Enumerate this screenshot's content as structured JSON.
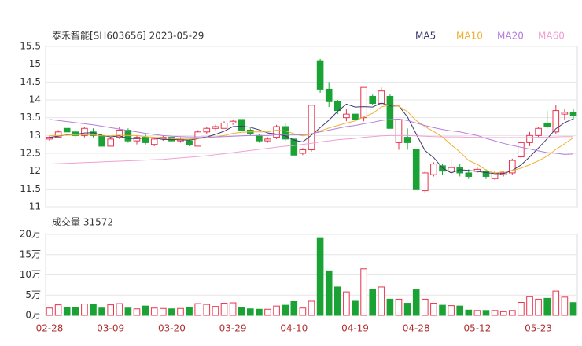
{
  "chart_data": [
    {
      "type": "candlestick",
      "title": "泰禾智能[SH603656] 2023-05-29",
      "categories": [
        "02-28",
        null,
        null,
        null,
        null,
        null,
        null,
        "03-09",
        null,
        null,
        null,
        null,
        null,
        null,
        "03-20",
        null,
        null,
        null,
        null,
        null,
        null,
        "03-29",
        null,
        null,
        null,
        null,
        null,
        null,
        "04-10",
        null,
        null,
        null,
        null,
        null,
        null,
        "04-19",
        null,
        null,
        null,
        null,
        null,
        null,
        "04-28",
        null,
        null,
        null,
        null,
        null,
        null,
        "05-12",
        null,
        null,
        null,
        null,
        null,
        null,
        "05-23",
        null,
        null,
        null,
        null
      ],
      "open": [
        12.9,
        12.95,
        13.2,
        13.1,
        13.0,
        13.1,
        13.0,
        12.7,
        12.95,
        13.15,
        12.85,
        12.95,
        12.75,
        12.9,
        12.95,
        12.85,
        12.85,
        12.7,
        13.1,
        13.2,
        13.2,
        13.35,
        13.45,
        13.15,
        13.0,
        12.85,
        12.95,
        13.25,
        12.9,
        12.5,
        12.6,
        15.1,
        14.3,
        13.95,
        13.5,
        13.6,
        13.5,
        14.1,
        13.9,
        14.1,
        12.8,
        12.95,
        12.6,
        11.45,
        11.9,
        12.15,
        12.0,
        12.1,
        11.95,
        12.0,
        12.0,
        11.8,
        11.9,
        11.95,
        12.4,
        12.8,
        13.0,
        13.35,
        13.1,
        13.6,
        13.65
      ],
      "high": [
        13.0,
        13.15,
        13.2,
        13.15,
        13.25,
        13.2,
        13.05,
        12.95,
        13.25,
        13.2,
        13.0,
        13.05,
        12.95,
        13.0,
        12.95,
        12.95,
        12.9,
        13.15,
        13.25,
        13.3,
        13.4,
        13.45,
        13.45,
        13.2,
        13.05,
        12.95,
        13.3,
        13.35,
        12.9,
        12.65,
        13.85,
        15.15,
        14.5,
        14.0,
        13.75,
        13.65,
        14.35,
        14.15,
        14.35,
        14.15,
        13.45,
        13.2,
        12.6,
        12.0,
        12.25,
        12.2,
        12.35,
        12.2,
        12.05,
        12.1,
        12.05,
        12.0,
        12.0,
        12.35,
        12.85,
        13.1,
        13.25,
        13.7,
        13.85,
        13.75,
        13.75
      ],
      "low": [
        12.85,
        12.95,
        13.1,
        12.95,
        12.95,
        12.95,
        12.7,
        12.7,
        12.9,
        12.8,
        12.75,
        12.75,
        12.7,
        12.85,
        12.85,
        12.8,
        12.7,
        12.7,
        13.05,
        13.15,
        13.2,
        13.3,
        13.15,
        13.0,
        12.8,
        12.8,
        12.9,
        12.85,
        12.45,
        12.45,
        12.55,
        14.2,
        13.8,
        13.6,
        13.4,
        13.4,
        13.4,
        13.85,
        13.85,
        13.2,
        12.6,
        12.6,
        11.5,
        11.4,
        11.85,
        11.9,
        11.95,
        11.85,
        11.8,
        11.95,
        11.8,
        11.75,
        11.85,
        11.9,
        12.35,
        12.7,
        12.95,
        13.2,
        13.05,
        13.45,
        13.45
      ],
      "close": [
        12.95,
        13.1,
        13.1,
        13.0,
        13.2,
        13.0,
        12.7,
        12.9,
        13.15,
        12.85,
        12.95,
        12.8,
        12.9,
        12.95,
        12.85,
        12.9,
        12.75,
        13.1,
        13.2,
        13.25,
        13.35,
        13.4,
        13.15,
        13.05,
        12.85,
        12.9,
        13.25,
        12.9,
        12.45,
        12.6,
        13.85,
        14.3,
        13.95,
        13.7,
        13.6,
        13.45,
        14.35,
        13.9,
        14.25,
        13.2,
        13.45,
        12.8,
        11.5,
        11.95,
        12.2,
        12.0,
        12.1,
        11.95,
        11.85,
        12.05,
        11.85,
        11.95,
        11.95,
        12.3,
        12.8,
        13.0,
        13.2,
        13.25,
        13.7,
        13.65,
        13.55
      ],
      "up_color": "#e8344e",
      "down_color": "#1aa334",
      "series": [
        {
          "name": "MA5",
          "color": "#3b3b6e",
          "values": [
            12.95,
            12.98,
            13.02,
            13.03,
            13.07,
            13.08,
            13.0,
            12.96,
            12.99,
            12.92,
            12.91,
            12.93,
            12.93,
            12.89,
            12.89,
            12.88,
            12.87,
            12.91,
            12.96,
            13.03,
            13.12,
            13.25,
            13.26,
            13.23,
            13.16,
            13.07,
            13.04,
            12.99,
            12.87,
            12.82,
            13.01,
            13.22,
            13.43,
            13.68,
            13.88,
            13.8,
            13.81,
            13.8,
            13.91,
            13.83,
            13.83,
            13.52,
            13.04,
            12.58,
            12.38,
            12.09,
            11.95,
            12.04,
            12.02,
            11.99,
            11.96,
            11.93,
            11.93,
            12.02,
            12.17,
            12.4,
            12.65,
            12.91,
            13.19,
            13.36,
            13.47
          ]
        },
        {
          "name": "MA10",
          "color": "#f0b030",
          "values": [
            13.0,
            13.0,
            13.01,
            13.02,
            13.03,
            13.02,
            12.99,
            12.99,
            13.01,
            13.0,
            13.0,
            12.97,
            12.95,
            12.94,
            12.91,
            12.9,
            12.9,
            12.92,
            12.93,
            12.96,
            13.0,
            13.06,
            13.09,
            13.1,
            13.1,
            13.1,
            13.15,
            13.13,
            13.05,
            12.99,
            13.04,
            13.13,
            13.21,
            13.28,
            13.35,
            13.41,
            13.52,
            13.62,
            13.8,
            13.86,
            13.82,
            13.67,
            13.42,
            13.25,
            13.11,
            12.96,
            12.74,
            12.54,
            12.3,
            12.19,
            12.03,
            11.94,
            11.99,
            12.02,
            12.08,
            12.18,
            12.29,
            12.42,
            12.61,
            12.77,
            12.94
          ]
        },
        {
          "name": "MA20",
          "color": "#b57fdc",
          "values": [
            13.45,
            13.42,
            13.39,
            13.36,
            13.33,
            13.3,
            13.26,
            13.22,
            13.18,
            13.14,
            13.1,
            13.06,
            13.03,
            13.0,
            12.98,
            12.97,
            12.96,
            12.96,
            12.96,
            12.96,
            12.97,
            12.98,
            12.99,
            13.0,
            13.0,
            13.0,
            13.02,
            13.03,
            13.02,
            13.02,
            13.05,
            13.1,
            13.15,
            13.2,
            13.25,
            13.28,
            13.33,
            13.37,
            13.42,
            13.45,
            13.46,
            13.42,
            13.35,
            13.28,
            13.22,
            13.17,
            13.13,
            13.1,
            13.05,
            13.0,
            12.92,
            12.85,
            12.78,
            12.72,
            12.67,
            12.62,
            12.57,
            12.52,
            12.5,
            12.47,
            12.48
          ]
        },
        {
          "name": "MA60",
          "color": "#f0a0d2",
          "values": [
            12.2,
            12.21,
            12.22,
            12.23,
            12.24,
            12.25,
            12.26,
            12.27,
            12.28,
            12.29,
            12.3,
            12.31,
            12.32,
            12.33,
            12.35,
            12.37,
            12.39,
            12.41,
            12.43,
            12.46,
            12.49,
            12.52,
            12.55,
            12.58,
            12.61,
            12.64,
            12.67,
            12.7,
            12.72,
            12.75,
            12.78,
            12.82,
            12.85,
            12.88,
            12.9,
            12.92,
            12.95,
            12.97,
            12.99,
            13.0,
            13.0,
            13.0,
            12.99,
            12.98,
            12.97,
            12.96,
            12.96,
            12.96,
            12.95,
            12.95,
            12.94,
            12.94,
            12.94,
            12.94,
            12.94,
            12.94,
            12.95,
            12.95,
            12.96,
            12.97,
            12.97
          ]
        }
      ],
      "ylim": [
        11,
        15.5
      ],
      "yticks": [
        11,
        11.5,
        12,
        12.5,
        13,
        13.5,
        14,
        14.5,
        15,
        15.5
      ],
      "grid": true,
      "legend": "top-right"
    },
    {
      "type": "bar",
      "title": "成交量 31572",
      "values": [
        1.8,
        2.6,
        2.0,
        2.0,
        2.8,
        2.8,
        1.8,
        2.6,
        2.9,
        1.8,
        1.6,
        2.3,
        1.8,
        1.7,
        1.6,
        1.7,
        2.0,
        2.9,
        2.7,
        2.2,
        3.0,
        3.1,
        2.0,
        1.6,
        1.5,
        1.5,
        2.3,
        2.5,
        3.4,
        1.8,
        3.5,
        19.0,
        11.0,
        7.0,
        5.8,
        3.5,
        11.5,
        6.5,
        7.0,
        4.0,
        4.0,
        3.0,
        6.3,
        4.0,
        3.0,
        2.5,
        2.4,
        2.3,
        1.3,
        1.2,
        1.2,
        1.2,
        0.9,
        1.2,
        3.2,
        4.6,
        4.0,
        4.2,
        6.0,
        4.5,
        3.1572
      ],
      "ylim": [
        0,
        20
      ],
      "yticks": [
        {
          "value": 0,
          "label": "0万"
        },
        {
          "value": 5,
          "label": "5万"
        },
        {
          "value": 10,
          "label": "10万"
        },
        {
          "value": 15,
          "label": "15万"
        },
        {
          "value": 20,
          "label": "20万"
        }
      ],
      "grid": true
    }
  ]
}
